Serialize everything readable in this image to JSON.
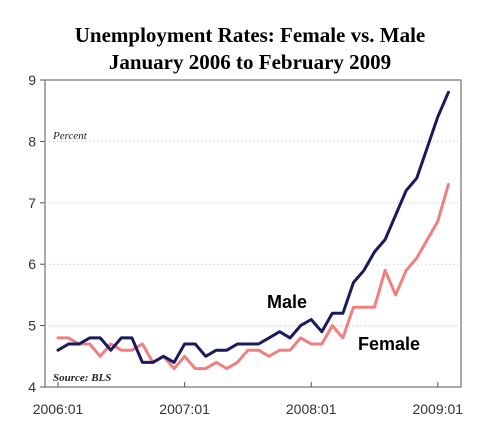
{
  "chart_data": {
    "type": "line",
    "title_line1": "Unemployment Rates: Female vs. Male",
    "title_line2": "January 2006 to February 2009",
    "ylabel": "Percent",
    "source": "Source: BLS",
    "ylim": [
      4,
      9
    ],
    "yticks": [
      4,
      5,
      6,
      7,
      8,
      9
    ],
    "x_start": "2006:01",
    "x_end": "2009:02",
    "xticks": [
      "2006:01",
      "2007:01",
      "2008:01",
      "2009:01"
    ],
    "grid": "horizontal-dotted",
    "series": [
      {
        "name": "Male",
        "color": "#1a1a5e",
        "values": [
          4.6,
          4.7,
          4.7,
          4.8,
          4.8,
          4.6,
          4.8,
          4.8,
          4.4,
          4.4,
          4.5,
          4.4,
          4.7,
          4.7,
          4.5,
          4.6,
          4.6,
          4.7,
          4.7,
          4.7,
          4.8,
          4.9,
          4.8,
          5.0,
          5.1,
          4.9,
          5.2,
          5.2,
          5.7,
          5.9,
          6.2,
          6.4,
          6.8,
          7.2,
          7.4,
          7.9,
          8.4,
          8.8
        ]
      },
      {
        "name": "Female",
        "color": "#f08080",
        "values": [
          4.8,
          4.8,
          4.7,
          4.7,
          4.5,
          4.7,
          4.6,
          4.6,
          4.7,
          4.4,
          4.5,
          4.3,
          4.5,
          4.3,
          4.3,
          4.4,
          4.3,
          4.4,
          4.6,
          4.6,
          4.5,
          4.6,
          4.6,
          4.8,
          4.7,
          4.7,
          5.0,
          4.8,
          5.3,
          5.3,
          5.3,
          5.9,
          5.5,
          5.9,
          6.1,
          6.4,
          6.7,
          7.3
        ]
      }
    ]
  }
}
